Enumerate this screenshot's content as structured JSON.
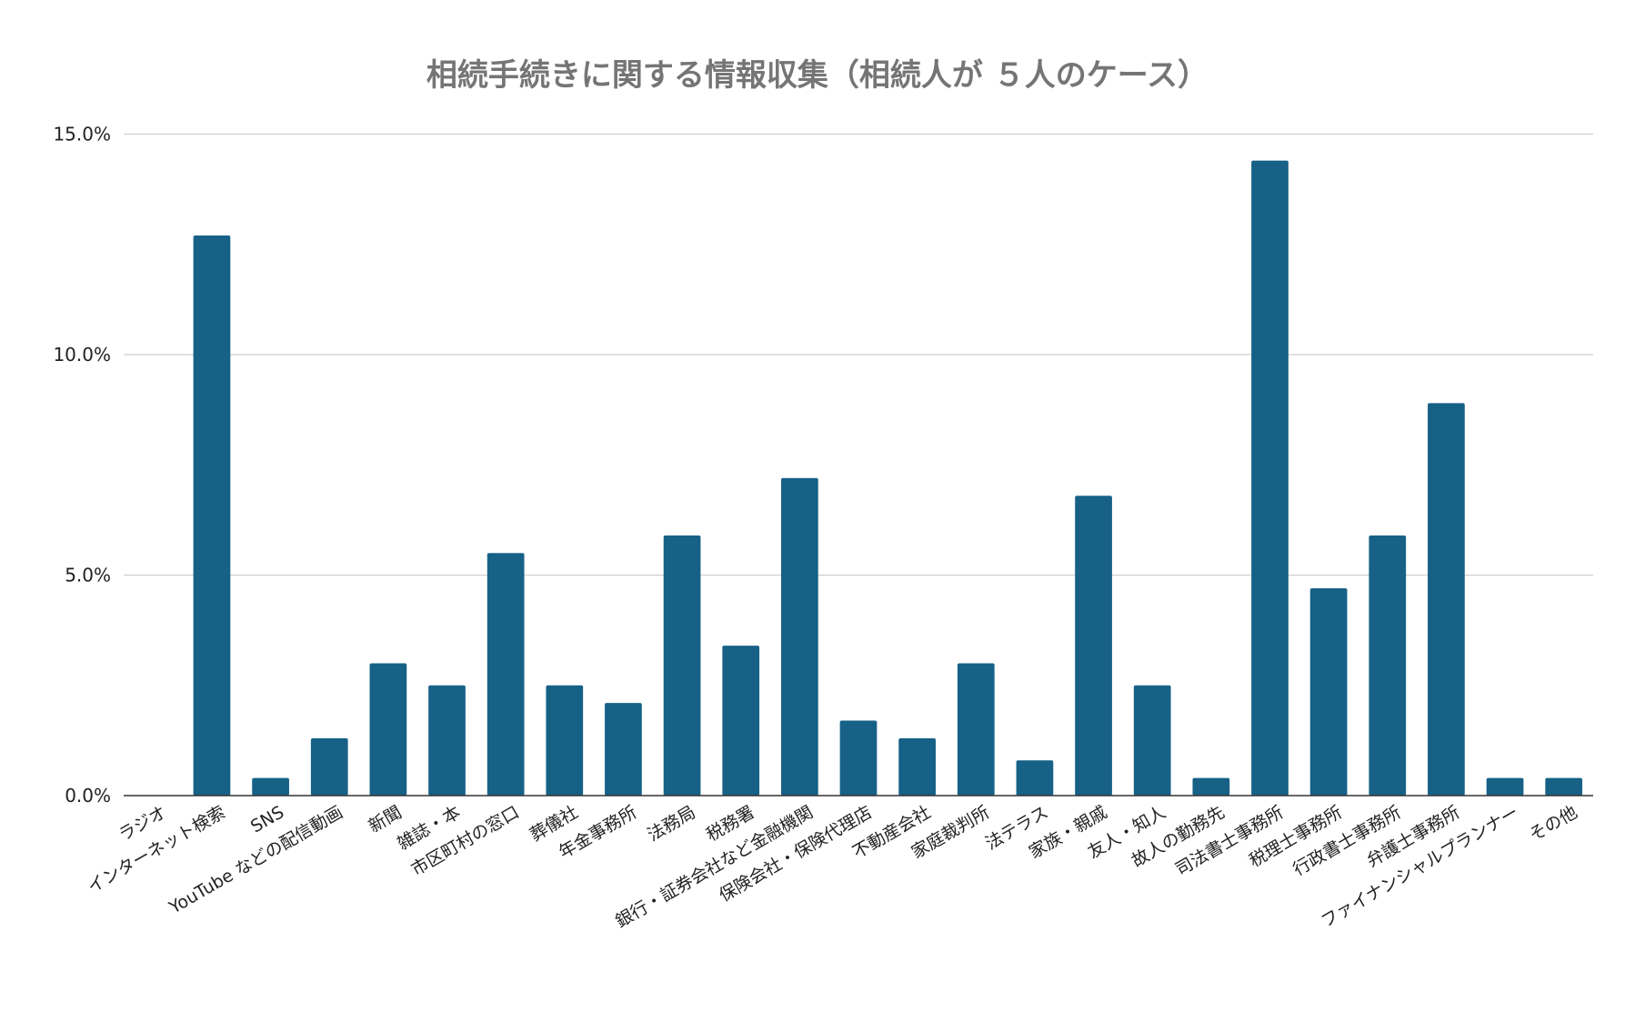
{
  "chart_data": {
    "type": "bar",
    "title": "相続手続きに関する情報収集（相続人が ５人のケース）",
    "xlabel": "",
    "ylabel": "",
    "ylim": [
      0,
      15
    ],
    "yticks": [
      0,
      5,
      10,
      15
    ],
    "ytick_labels": [
      "0.0%",
      "5.0%",
      "10.0%",
      "15.0%"
    ],
    "grid": true,
    "bar_color": "#176187",
    "categories": [
      "ラジオ",
      "インターネット検索",
      "SNS",
      "YouTube などの配信動画",
      "新聞",
      "雑誌・本",
      "市区町村の窓口",
      "葬儀社",
      "年金事務所",
      "法務局",
      "税務署",
      "銀行・証券会社など金融機関",
      "保険会社・保険代理店",
      "不動産会社",
      "家庭裁判所",
      "法テラス",
      "家族・親戚",
      "友人・知人",
      "故人の勤務先",
      "司法書士事務所",
      "税理士事務所",
      "行政書士事務所",
      "弁護士事務所",
      "ファイナンシャルプランナー",
      "その他"
    ],
    "values": [
      0,
      12.7,
      0.4,
      1.3,
      3.0,
      2.5,
      5.5,
      2.5,
      2.1,
      5.9,
      3.4,
      7.2,
      1.7,
      1.3,
      3.0,
      0.8,
      6.8,
      2.5,
      0.4,
      14.4,
      4.7,
      5.9,
      8.9,
      0.4,
      0.4
    ]
  }
}
